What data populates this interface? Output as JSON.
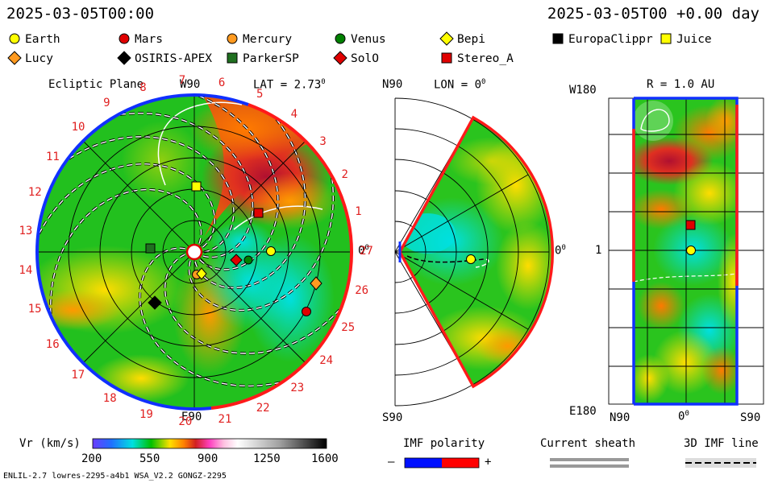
{
  "header": {
    "left_time": "2025-03-05T00:00",
    "right_time": "2025-03-05T00 +0.00 day"
  },
  "legend": [
    {
      "name": "Earth",
      "shape": "circle",
      "color": "#ffff00"
    },
    {
      "name": "Mars",
      "shape": "circle",
      "color": "#e00000"
    },
    {
      "name": "Mercury",
      "shape": "circle",
      "color": "#ff9a20"
    },
    {
      "name": "Venus",
      "shape": "circle",
      "color": "#008000"
    },
    {
      "name": "Bepi",
      "shape": "diamond",
      "color": "#ffff00"
    },
    {
      "name": "EuropaClippr",
      "shape": "square",
      "color": "#000000"
    },
    {
      "name": "Juice",
      "shape": "square",
      "color": "#ffff00"
    },
    {
      "name": "Lucy",
      "shape": "diamond",
      "color": "#ff9a20"
    },
    {
      "name": "OSIRIS-APEX",
      "shape": "diamond",
      "color": "#000000"
    },
    {
      "name": "ParkerSP",
      "shape": "square",
      "color": "#207020"
    },
    {
      "name": "SolO",
      "shape": "diamond",
      "color": "#e00000"
    },
    {
      "name": "Stereo_A",
      "shape": "square",
      "color": "#e00000"
    }
  ],
  "panels": {
    "ecliptic": {
      "title": "Ecliptic Plane",
      "lat": "LAT = 2.73",
      "deg": "0",
      "top": "W90",
      "bottom": "E90",
      "right": "0",
      "ticks": [
        "1",
        "2",
        "3",
        "4",
        "5",
        "6",
        "7",
        "8",
        "9",
        "10",
        "11",
        "12",
        "13",
        "14",
        "15",
        "16",
        "17",
        "18",
        "19",
        "20",
        "21",
        "22",
        "23",
        "24",
        "25",
        "26",
        "27"
      ]
    },
    "meridional": {
      "n": "N90",
      "s": "S90",
      "lon": "LON = 0",
      "deg": "0",
      "right": "0"
    },
    "synoptic": {
      "r": "R = 1.0 AU",
      "w": "W180",
      "e": "E180",
      "mid": "1",
      "n": "N90",
      "s": "S90",
      "x0": "0"
    }
  },
  "colorbar": {
    "label": "Vr (km/s)",
    "ticks": [
      "200",
      "550",
      "900",
      "1250",
      "1600"
    ]
  },
  "imf": {
    "title": "IMF polarity",
    "minus": "–",
    "plus": "+",
    "colors": [
      "#0010ff",
      "#ff0000"
    ]
  },
  "sheath": {
    "title": "Current sheath"
  },
  "imf3d": {
    "title": "3D IMF line"
  },
  "footer": {
    "left": "ENLIL-2.7 lowres-2295-a4b1 WSA_V2.2 GONGZ-2295"
  },
  "chart_data": [
    {
      "type": "heatmap",
      "title": "Ecliptic Plane",
      "quantity": "Vr (km/s)",
      "range": [
        200,
        1600
      ],
      "objects": [
        {
          "name": "Earth",
          "lon_deg": 0
        },
        {
          "name": "Stereo_A",
          "lon_deg": -34
        }
      ]
    },
    {
      "type": "heatmap",
      "title": "LON = 0",
      "quantity": "Vr (km/s)"
    },
    {
      "type": "heatmap",
      "title": "R = 1.0 AU",
      "quantity": "Vr (km/s)",
      "ylabel_top": "W180",
      "ylabel_bottom": "E180",
      "xlabels": [
        "N90",
        "0",
        "S90"
      ]
    }
  ]
}
